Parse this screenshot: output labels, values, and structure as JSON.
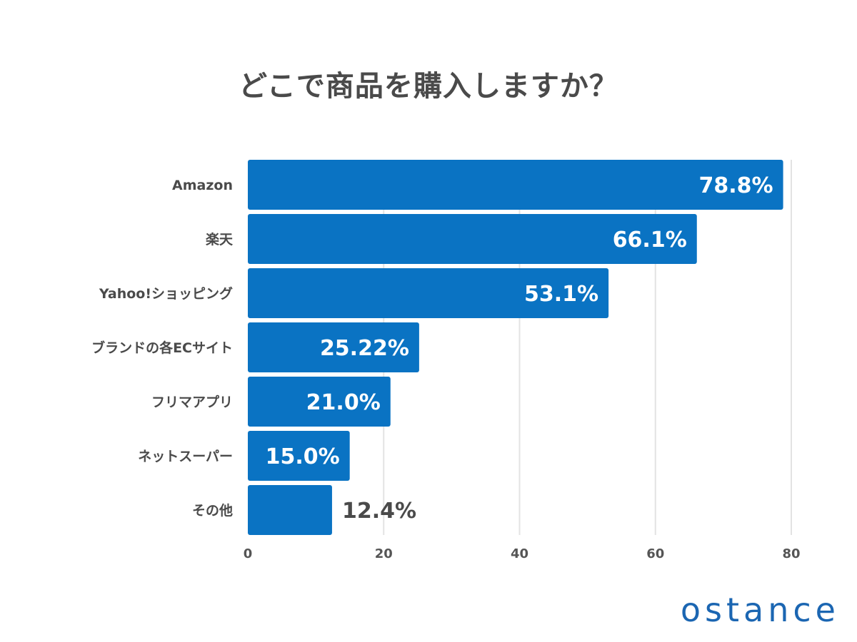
{
  "brand": {
    "logo_text": "ostance",
    "color": "#1b66b2"
  },
  "chart_data": {
    "type": "bar",
    "orientation": "horizontal",
    "title": "どこで商品を購入しますか？",
    "xlabel": "",
    "ylabel": "",
    "categories": [
      "Amazon",
      "楽天",
      "Yahoo!ショッピング",
      "ブランドの各ECサイト",
      "フリマアプリ",
      "ネットスーパー",
      "その他"
    ],
    "values": [
      78.8,
      66.1,
      53.1,
      25.22,
      21.0,
      15.0,
      12.4
    ],
    "value_labels": [
      "78.8%",
      "66.1%",
      "53.1%",
      "25.22%",
      "21.0%",
      "15.0%",
      "12.4%"
    ],
    "xlim": [
      0,
      80
    ],
    "xticks": [
      0,
      20,
      40,
      60,
      80
    ],
    "grid": "vertical",
    "legend": "none",
    "bar_color": "#0a73c3",
    "grid_color": "#e3e3e3"
  }
}
